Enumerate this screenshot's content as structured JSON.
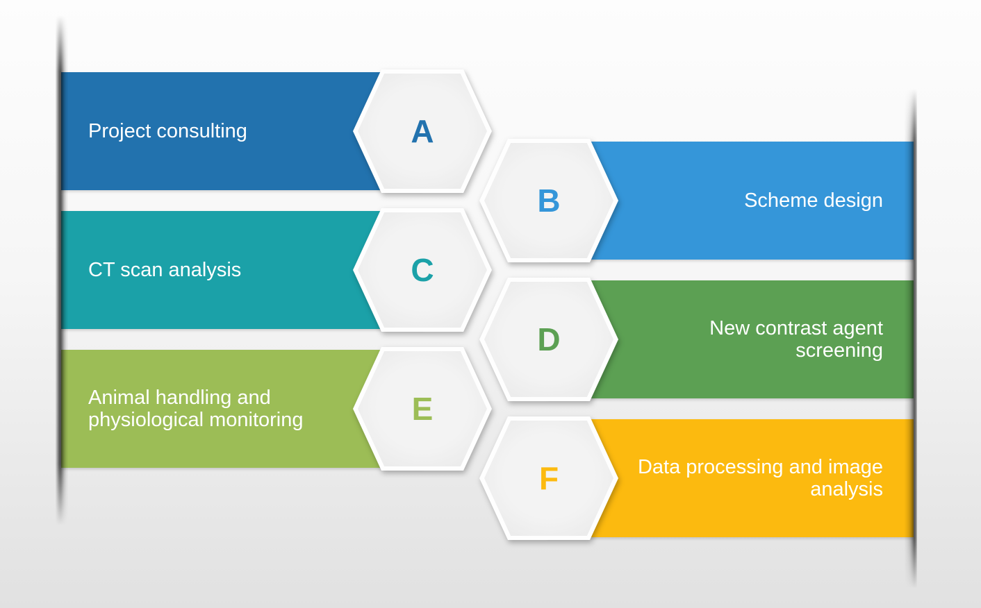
{
  "slide": {
    "background_top": "#fdfdfd",
    "background_bottom": "#e1e1e1",
    "hexagon_fill": "#f0f0f0",
    "hexagon_border_color": "#ffffff",
    "label_text_color": "#ffffff"
  },
  "items": [
    {
      "letter": "A",
      "label": "Project consulting",
      "color": "#2272ae",
      "side": "left"
    },
    {
      "letter": "B",
      "label": "Scheme design",
      "color": "#3596d9",
      "side": "right"
    },
    {
      "letter": "C",
      "label": "CT scan analysis",
      "color": "#1ba1a8",
      "side": "left"
    },
    {
      "letter": "D",
      "label": "New contrast agent screening",
      "color": "#5ca053",
      "side": "right"
    },
    {
      "letter": "E",
      "label": "Animal handling and physiological monitoring",
      "color": "#9cbd56",
      "side": "left"
    },
    {
      "letter": "F",
      "label": "Data processing and image analysis",
      "color": "#fcba0f",
      "side": "right"
    }
  ]
}
